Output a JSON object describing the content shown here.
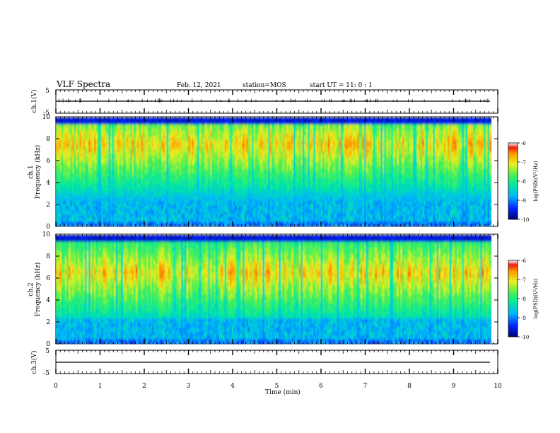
{
  "header": {
    "title": "VLF Spectra",
    "date": "Feb. 12, 2021",
    "station": "station=MOS",
    "start": "start UT =  11: 0  : 1"
  },
  "chart_data": [
    {
      "type": "line",
      "panel": "channel-1-waveform",
      "ylabel": "ch.1(V)",
      "ylim": [
        -5,
        5
      ],
      "yticks": [
        "5",
        "-5"
      ],
      "xlim": [
        0,
        10
      ],
      "series": [
        {
          "values": [
            0,
            0
          ]
        }
      ]
    },
    {
      "type": "heatmap",
      "panel": "channel-1-spectrogram",
      "ylabel": "ch.1\nFrequency (kHz)",
      "ylim": [
        0,
        10
      ],
      "yticks": [
        "0",
        "2",
        "4",
        "6",
        "8",
        "10"
      ],
      "xlim": [
        0,
        9.85
      ],
      "colorbar": {
        "label": "log(PSD)(V²/Hz)",
        "range": [
          -10,
          -6
        ],
        "ticks": [
          "-6",
          "-7",
          "-8",
          "-9",
          "-10"
        ]
      },
      "dominant_band_khz": [
        6,
        9
      ],
      "peak_log_psd": -6.5
    },
    {
      "type": "heatmap",
      "panel": "channel-2-spectrogram",
      "ylabel": "ch.2\nFrequency (kHz)",
      "ylim": [
        0,
        10
      ],
      "yticks": [
        "0",
        "2",
        "4",
        "6",
        "8",
        "10"
      ],
      "xlim": [
        0,
        9.85
      ],
      "colorbar": {
        "label": "log(PSD)(V²/Hz)",
        "range": [
          -10,
          -6
        ],
        "ticks": [
          "-6",
          "-7",
          "-8",
          "-9",
          "-10"
        ]
      },
      "dominant_band_khz": [
        5,
        8
      ],
      "peak_log_psd": -6.5
    },
    {
      "type": "line",
      "panel": "channel-3-waveform",
      "ylabel": "ch.3(V)",
      "ylim": [
        -5,
        5
      ],
      "yticks": [
        "5",
        "-5"
      ],
      "xlim": [
        0,
        10
      ],
      "series": [
        {
          "values": [
            0,
            0
          ]
        }
      ]
    }
  ],
  "xaxis": {
    "label": "Time  (min)",
    "ticks": [
      "0",
      "1",
      "2",
      "3",
      "4",
      "5",
      "6",
      "7",
      "8",
      "9",
      "10"
    ]
  },
  "colormap": [
    "#00007a",
    "#0028ff",
    "#00b4ff",
    "#00e8a0",
    "#4cf050",
    "#e8f020",
    "#ff9a00",
    "#f01a10"
  ]
}
